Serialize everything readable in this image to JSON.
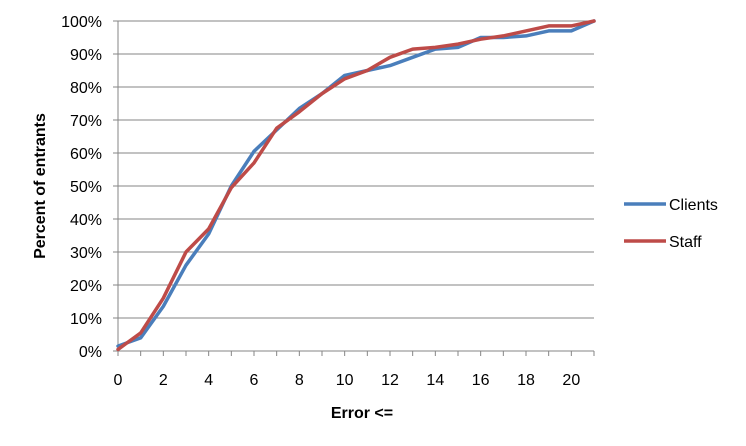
{
  "chart_data": {
    "type": "line",
    "title": "",
    "xlabel": "Error <=",
    "ylabel": "Percent of entrants",
    "x": [
      0,
      1,
      2,
      3,
      4,
      5,
      6,
      7,
      8,
      9,
      10,
      11,
      12,
      13,
      14,
      15,
      16,
      17,
      18,
      19,
      20,
      21
    ],
    "xlim": [
      0,
      21
    ],
    "ylim": [
      0,
      100
    ],
    "x_ticks": [
      0,
      2,
      4,
      6,
      8,
      10,
      12,
      14,
      16,
      18,
      20
    ],
    "y_ticks": [
      0,
      10,
      20,
      30,
      40,
      50,
      60,
      70,
      80,
      90,
      100
    ],
    "y_tick_labels": [
      "0%",
      "10%",
      "20%",
      "30%",
      "40%",
      "50%",
      "60%",
      "70%",
      "80%",
      "90%",
      "100%"
    ],
    "x_tick_labels": [
      "0",
      "2",
      "4",
      "6",
      "8",
      "10",
      "12",
      "14",
      "16",
      "18",
      "20"
    ],
    "grid": "horizontal",
    "legend_position": "right",
    "series": [
      {
        "name": "Clients",
        "color": "#4a7ebb",
        "values": [
          1.5,
          4,
          13.5,
          26,
          35.5,
          50,
          60.5,
          67,
          73.5,
          78,
          83.5,
          85,
          86.5,
          89,
          91.5,
          92,
          95,
          95,
          95.5,
          97,
          97,
          100
        ]
      },
      {
        "name": "Staff",
        "color": "#be4b48",
        "values": [
          0.5,
          5.5,
          16,
          30,
          37,
          49.5,
          57,
          67.5,
          72.5,
          78,
          82.5,
          85,
          89,
          91.5,
          92,
          93,
          94.5,
          95.5,
          97,
          98.5,
          98.5,
          100
        ]
      }
    ]
  }
}
